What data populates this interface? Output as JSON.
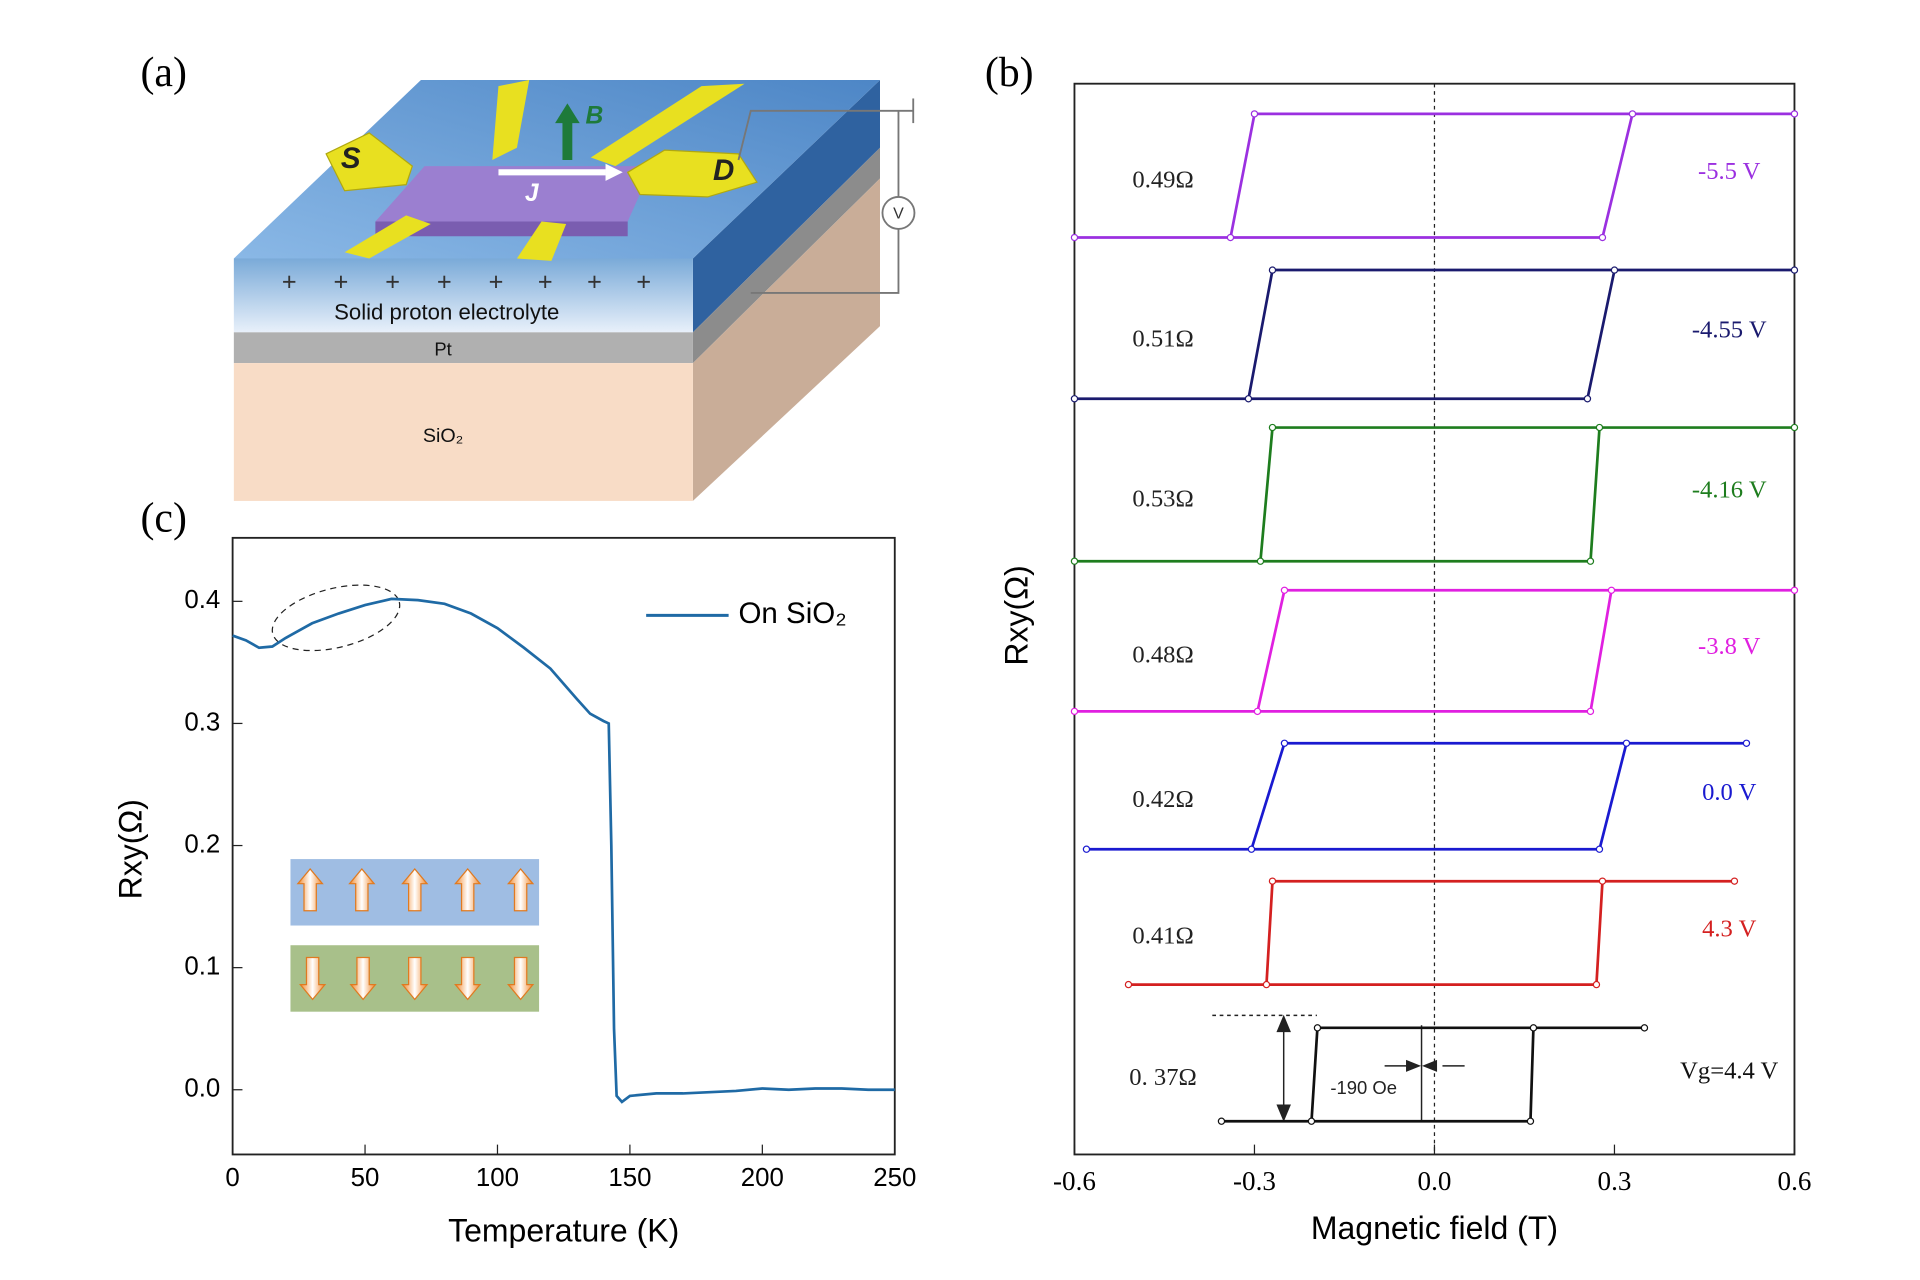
{
  "panels": [
    "(a)",
    "(b)",
    "(c)"
  ],
  "diagram": {
    "source": "S",
    "drain": "D",
    "field": "B",
    "current": "J",
    "voltmeter": "V",
    "electrolyte": "Solid proton electrolyte",
    "electrode": "Pt",
    "substrate": "SiO₂"
  },
  "chart_data": [
    {
      "type": "line",
      "xlabel": "Temperature (K)",
      "ylabel": "Rxy(Ω)",
      "xlim": [
        0,
        250
      ],
      "ylim": [
        -0.053,
        0.452
      ],
      "xticks": [
        0,
        50,
        100,
        150,
        200,
        250
      ],
      "yticks": [
        {
          "value": 0,
          "label": "0.0"
        },
        0.1,
        0.2,
        0.3,
        0.4
      ],
      "legend": "upper right",
      "series": [
        {
          "name": "On SiO₂",
          "color": "#1f6aa5",
          "x": [
            0,
            5,
            10,
            15,
            20,
            30,
            40,
            50,
            60,
            70,
            80,
            90,
            100,
            110,
            120,
            130,
            135,
            140,
            142,
            143,
            144,
            145,
            147,
            150,
            160,
            170,
            180,
            190,
            200,
            210,
            220,
            230,
            240,
            250
          ],
          "values": [
            0.372,
            0.368,
            0.362,
            0.363,
            0.37,
            0.382,
            0.39,
            0.397,
            0.402,
            0.401,
            0.398,
            0.39,
            0.378,
            0.362,
            0.345,
            0.32,
            0.308,
            0.302,
            0.3,
            0.2,
            0.05,
            -0.005,
            -0.01,
            -0.005,
            -0.003,
            -0.003,
            -0.002,
            -0.001,
            0.001,
            0,
            0.001,
            0.001,
            0,
            0
          ]
        }
      ]
    },
    {
      "type": "hysteresis",
      "xlabel": "Magnetic field (T)",
      "ylabel": "Rxy(Ω)",
      "xlim": [
        -0.6,
        0.6
      ],
      "xticks": [
        -0.6,
        -0.3,
        {
          "value": 0,
          "label": "0.0"
        },
        0.3,
        0.6
      ],
      "annotation": "-190 Oe",
      "series": [
        {
          "name": "-5.5 V",
          "color": "#9b30e0",
          "amplitude_label": "0.49Ω",
          "x": [
            -0.6,
            0.28,
            0.33,
            0.6,
            -0.3,
            -0.34
          ],
          "values": [
            0,
            0,
            0.49,
            0.49,
            0.49,
            0
          ]
        },
        {
          "name": "-4.55 V",
          "color": "#1a1a6e",
          "amplitude_label": "0.51Ω",
          "x": [
            -0.6,
            0.255,
            0.3,
            0.6,
            -0.27,
            -0.31
          ],
          "values": [
            0,
            0,
            0.51,
            0.51,
            0.51,
            0
          ]
        },
        {
          "name": "-4.16 V",
          "color": "#1e7d1e",
          "amplitude_label": "0.53Ω",
          "x": [
            -0.6,
            0.26,
            0.275,
            0.6,
            -0.27,
            -0.29
          ],
          "values": [
            0,
            0,
            0.53,
            0.53,
            0.53,
            0
          ]
        },
        {
          "name": "-3.8 V",
          "color": "#e020e0",
          "amplitude_label": "0.48Ω",
          "x": [
            -0.6,
            0.26,
            0.295,
            0.6,
            -0.25,
            -0.295
          ],
          "values": [
            0,
            0,
            0.48,
            0.48,
            0.48,
            0
          ]
        },
        {
          "name": "0.0 V",
          "color": "#1a1ad0",
          "amplitude_label": "0.42Ω",
          "x": [
            -0.58,
            0.275,
            0.32,
            0.52,
            -0.25,
            -0.305
          ],
          "values": [
            0,
            0,
            0.42,
            0.42,
            0.42,
            0
          ]
        },
        {
          "name": "4.3 V",
          "color": "#d42020",
          "amplitude_label": "0.41Ω",
          "x": [
            -0.51,
            0.27,
            0.28,
            0.5,
            -0.27,
            -0.28
          ],
          "values": [
            0,
            0,
            0.41,
            0.41,
            0.41,
            0
          ]
        },
        {
          "name": "Vg=4.4 V",
          "color": "#111111",
          "amplitude_label": "0. 37Ω",
          "x": [
            -0.355,
            0.16,
            0.165,
            0.35,
            -0.195,
            -0.205
          ],
          "values": [
            0,
            0,
            0.37,
            0.37,
            0.37,
            0
          ]
        }
      ]
    }
  ]
}
